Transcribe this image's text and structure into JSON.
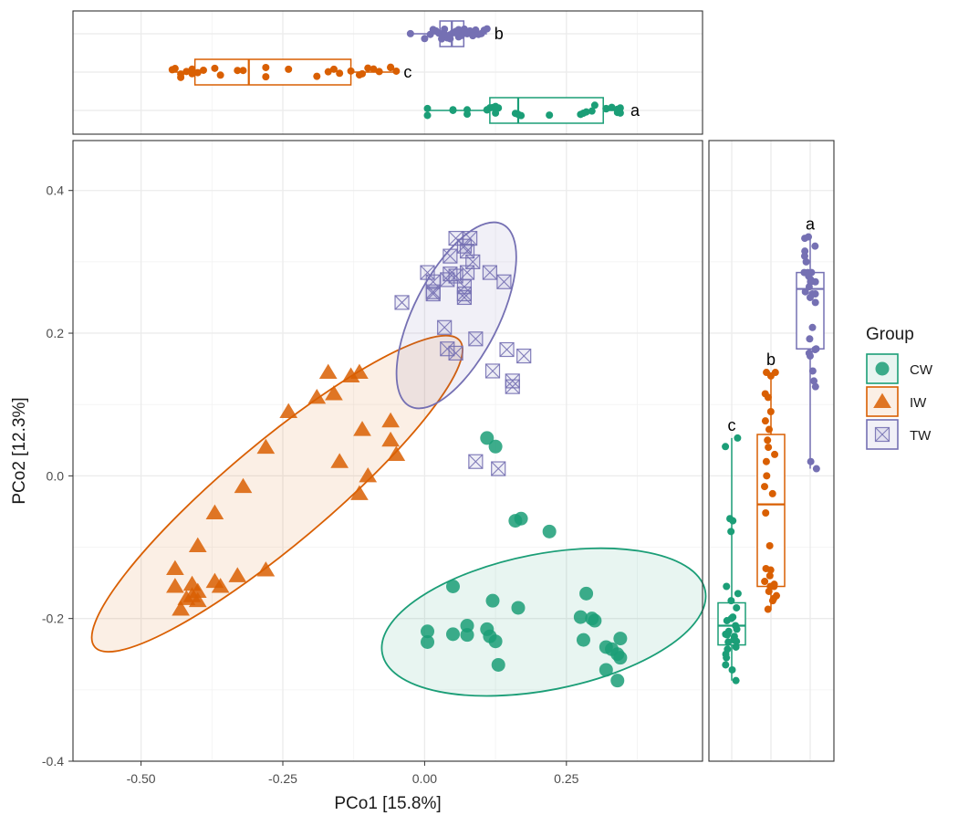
{
  "chart_data": {
    "type": "scatter",
    "title": "",
    "xlabel": "PCo1 [15.8%]",
    "ylabel": "PCo2 [12.3%]",
    "xlim": [
      -0.62,
      0.49
    ],
    "ylim": [
      -0.4,
      0.47
    ],
    "x_ticks": [
      -0.5,
      -0.25,
      0.0,
      0.25
    ],
    "x_tick_labels": [
      "-0.50",
      "-0.25",
      "0.00",
      "0.25"
    ],
    "y_ticks": [
      -0.4,
      -0.2,
      0.0,
      0.2,
      0.4
    ],
    "y_tick_labels": [
      "-0.4",
      "-0.2",
      "0.0",
      "0.2",
      "0.4"
    ],
    "grid": true,
    "legend": {
      "title": "Group",
      "position": "right"
    },
    "colors": {
      "CW": "#1b9e77",
      "IW": "#d95f02",
      "TW": "#7570b3"
    },
    "series": [
      {
        "name": "CW",
        "marker": "circle",
        "points": [
          [
            0.11,
            0.053
          ],
          [
            0.125,
            0.041
          ],
          [
            0.16,
            -0.063
          ],
          [
            0.17,
            -0.06
          ],
          [
            0.22,
            -0.078
          ],
          [
            0.05,
            -0.155
          ],
          [
            0.12,
            -0.175
          ],
          [
            0.165,
            -0.185
          ],
          [
            0.285,
            -0.165
          ],
          [
            0.275,
            -0.198
          ],
          [
            0.295,
            -0.2
          ],
          [
            0.3,
            -0.203
          ],
          [
            0.075,
            -0.21
          ],
          [
            0.11,
            -0.215
          ],
          [
            0.005,
            -0.218
          ],
          [
            0.05,
            -0.222
          ],
          [
            0.075,
            -0.223
          ],
          [
            0.115,
            -0.225
          ],
          [
            0.125,
            -0.232
          ],
          [
            0.005,
            -0.233
          ],
          [
            0.345,
            -0.228
          ],
          [
            0.28,
            -0.23
          ],
          [
            0.32,
            -0.24
          ],
          [
            0.33,
            -0.243
          ],
          [
            0.34,
            -0.25
          ],
          [
            0.345,
            -0.255
          ],
          [
            0.13,
            -0.265
          ],
          [
            0.32,
            -0.272
          ],
          [
            0.34,
            -0.287
          ]
        ]
      },
      {
        "name": "IW",
        "marker": "triangle",
        "points": [
          [
            -0.17,
            0.145
          ],
          [
            -0.115,
            0.145
          ],
          [
            -0.13,
            0.14
          ],
          [
            -0.16,
            0.115
          ],
          [
            -0.19,
            0.11
          ],
          [
            -0.24,
            0.09
          ],
          [
            -0.06,
            0.077
          ],
          [
            -0.11,
            0.065
          ],
          [
            -0.06,
            0.05
          ],
          [
            -0.28,
            0.04
          ],
          [
            -0.05,
            0.03
          ],
          [
            -0.15,
            0.02
          ],
          [
            -0.1,
            0.0
          ],
          [
            -0.32,
            -0.015
          ],
          [
            -0.115,
            -0.025
          ],
          [
            -0.37,
            -0.052
          ],
          [
            -0.4,
            -0.098
          ],
          [
            -0.44,
            -0.13
          ],
          [
            -0.28,
            -0.132
          ],
          [
            -0.33,
            -0.14
          ],
          [
            -0.37,
            -0.148
          ],
          [
            -0.41,
            -0.152
          ],
          [
            -0.36,
            -0.155
          ],
          [
            -0.44,
            -0.155
          ],
          [
            -0.4,
            -0.162
          ],
          [
            -0.41,
            -0.168
          ],
          [
            -0.42,
            -0.172
          ],
          [
            -0.4,
            -0.175
          ],
          [
            -0.43,
            -0.187
          ]
        ]
      },
      {
        "name": "TW",
        "marker": "boxed-x",
        "points": [
          [
            0.055,
            0.333
          ],
          [
            0.08,
            0.333
          ],
          [
            0.07,
            0.322
          ],
          [
            0.075,
            0.315
          ],
          [
            0.045,
            0.308
          ],
          [
            0.085,
            0.3
          ],
          [
            0.005,
            0.285
          ],
          [
            0.075,
            0.285
          ],
          [
            0.115,
            0.285
          ],
          [
            0.045,
            0.283
          ],
          [
            0.055,
            0.28
          ],
          [
            0.04,
            0.275
          ],
          [
            0.015,
            0.272
          ],
          [
            0.14,
            0.272
          ],
          [
            0.07,
            0.265
          ],
          [
            0.015,
            0.258
          ],
          [
            0.07,
            0.255
          ],
          [
            0.07,
            0.25
          ],
          [
            0.015,
            0.255
          ],
          [
            -0.04,
            0.243
          ],
          [
            0.035,
            0.208
          ],
          [
            0.09,
            0.192
          ],
          [
            0.04,
            0.178
          ],
          [
            0.055,
            0.172
          ],
          [
            0.145,
            0.177
          ],
          [
            0.175,
            0.168
          ],
          [
            0.155,
            0.133
          ],
          [
            0.155,
            0.125
          ],
          [
            0.12,
            0.147
          ],
          [
            0.09,
            0.02
          ],
          [
            0.13,
            0.01
          ]
        ]
      }
    ],
    "ellipses": [
      {
        "name": "CW",
        "cx": 0.21,
        "cy": -0.205,
        "rx": 0.29,
        "ry": 0.12,
        "angle_deg": -11
      },
      {
        "name": "IW",
        "cx": -0.26,
        "cy": -0.025,
        "rx": 0.42,
        "ry": 0.09,
        "angle_deg": -40
      },
      {
        "name": "TW",
        "cx": 0.056,
        "cy": 0.225,
        "rx": 0.18,
        "ry": 0.075,
        "angle_deg": -63
      }
    ],
    "top_boxplot": {
      "axis": "PCo1",
      "groups": [
        {
          "name": "TW",
          "q1": 0.027,
          "median": 0.048,
          "q3": 0.069,
          "whisker_low": -0.025,
          "whisker_high": 0.11,
          "letter": "b",
          "points": [
            -0.025,
            0.01,
            0.015,
            0.02,
            0.025,
            0.03,
            0.035,
            0.04,
            0.045,
            0.05,
            0.055,
            0.06,
            0.065,
            0.07,
            0.075,
            0.08,
            0.085,
            0.09,
            0.095,
            0.1,
            0.105,
            0.11,
            0.0,
            0.03,
            0.06,
            0.075,
            0.045,
            0.07,
            0.055,
            0.035,
            0.085
          ]
        },
        {
          "name": "IW",
          "q1": -0.405,
          "median": -0.31,
          "q3": -0.13,
          "whisker_low": -0.445,
          "whisker_high": -0.05,
          "letter": "c",
          "points": [
            -0.445,
            -0.44,
            -0.43,
            -0.42,
            -0.41,
            -0.4,
            -0.39,
            -0.37,
            -0.36,
            -0.33,
            -0.32,
            -0.28,
            -0.28,
            -0.24,
            -0.19,
            -0.17,
            -0.16,
            -0.15,
            -0.13,
            -0.115,
            -0.11,
            -0.1,
            -0.09,
            -0.08,
            -0.06,
            -0.06,
            -0.05,
            -0.43,
            -0.41
          ]
        },
        {
          "name": "CW",
          "q1": 0.115,
          "median": 0.165,
          "q3": 0.315,
          "whisker_low": 0.005,
          "whisker_high": 0.35,
          "letter": "a",
          "points": [
            0.005,
            0.005,
            0.05,
            0.05,
            0.075,
            0.075,
            0.11,
            0.11,
            0.115,
            0.12,
            0.125,
            0.125,
            0.13,
            0.16,
            0.165,
            0.17,
            0.22,
            0.275,
            0.28,
            0.285,
            0.295,
            0.3,
            0.32,
            0.32,
            0.33,
            0.34,
            0.34,
            0.345,
            0.345
          ]
        }
      ]
    },
    "right_boxplot": {
      "axis": "PCo2",
      "groups": [
        {
          "name": "CW",
          "q1": -0.237,
          "median": -0.21,
          "q3": -0.178,
          "whisker_low": -0.287,
          "whisker_high": 0.053,
          "letter": "c",
          "points": [
            0.053,
            0.041,
            -0.06,
            -0.063,
            -0.078,
            -0.155,
            -0.165,
            -0.175,
            -0.185,
            -0.198,
            -0.2,
            -0.203,
            -0.21,
            -0.215,
            -0.218,
            -0.222,
            -0.223,
            -0.225,
            -0.228,
            -0.23,
            -0.232,
            -0.233,
            -0.24,
            -0.243,
            -0.25,
            -0.255,
            -0.265,
            -0.272,
            -0.287
          ]
        },
        {
          "name": "IW",
          "q1": -0.155,
          "median": -0.04,
          "q3": 0.058,
          "whisker_low": -0.187,
          "whisker_high": 0.145,
          "letter": "b",
          "points": [
            0.145,
            0.145,
            0.14,
            0.115,
            0.11,
            0.09,
            0.077,
            0.065,
            0.05,
            0.04,
            0.03,
            0.02,
            0.0,
            -0.015,
            -0.025,
            -0.052,
            -0.098,
            -0.13,
            -0.132,
            -0.14,
            -0.148,
            -0.152,
            -0.155,
            -0.155,
            -0.162,
            -0.168,
            -0.172,
            -0.175,
            -0.187
          ]
        },
        {
          "name": "TW",
          "q1": 0.178,
          "median": 0.262,
          "q3": 0.285,
          "whisker_low": 0.01,
          "whisker_high": 0.335,
          "letter": "a",
          "points": [
            0.335,
            0.333,
            0.322,
            0.315,
            0.308,
            0.3,
            0.285,
            0.285,
            0.285,
            0.283,
            0.28,
            0.275,
            0.272,
            0.272,
            0.265,
            0.258,
            0.255,
            0.255,
            0.25,
            0.243,
            0.208,
            0.192,
            0.178,
            0.177,
            0.172,
            0.168,
            0.147,
            0.133,
            0.125,
            0.02,
            0.01
          ]
        }
      ]
    }
  }
}
